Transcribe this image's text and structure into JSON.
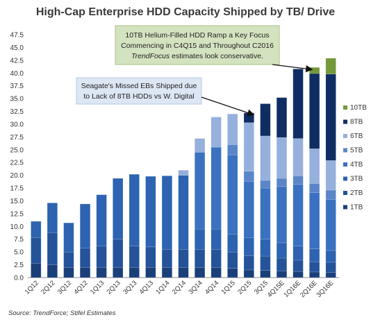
{
  "chart_data": {
    "type": "bar",
    "stacked": true,
    "title": "High-Cap Enterprise HDD Capacity Shipped by TB/ Drive",
    "xlabel": "",
    "ylabel": "",
    "ylim": [
      0,
      47.5
    ],
    "y_ticks": [
      "0.0",
      "2.5",
      "5.0",
      "7.5",
      "10.0",
      "12.5",
      "15.0",
      "17.5",
      "20.0",
      "22.5",
      "25.0",
      "27.5",
      "30.0",
      "32.5",
      "35.0",
      "37.5",
      "40.0",
      "42.5",
      "45.0",
      "47.5"
    ],
    "grid": false,
    "legend_position": "right",
    "categories": [
      "1Q12",
      "2Q12",
      "3Q12",
      "4Q12",
      "1Q13",
      "2Q13",
      "3Q13",
      "4Q13",
      "1Q14",
      "2Q14",
      "3Q14",
      "4Q14",
      "1Q15",
      "2Q15",
      "3Q15",
      "4Q15E",
      "1Q16E",
      "2Q16E",
      "3Q16E"
    ],
    "series": [
      {
        "name": "1TB",
        "color": "#1b3f7a",
        "values": [
          2.8,
          2.5,
          2.0,
          2.0,
          2.0,
          2.0,
          2.0,
          2.0,
          2.0,
          2.0,
          2.0,
          2.0,
          1.8,
          1.5,
          1.4,
          1.3,
          1.2,
          1.1,
          1.0
        ]
      },
      {
        "name": "2TB",
        "color": "#24539a",
        "values": [
          5.0,
          6.3,
          3.0,
          3.8,
          4.2,
          5.5,
          4.2,
          4.0,
          3.5,
          3.5,
          3.5,
          3.5,
          3.2,
          2.8,
          2.8,
          2.5,
          2.2,
          2.0,
          2.0
        ]
      },
      {
        "name": "3TB",
        "color": "#2d63b0",
        "values": [
          3.2,
          5.8,
          5.7,
          8.6,
          10.0,
          11.9,
          14.0,
          13.8,
          14.4,
          14.5,
          4.0,
          4.0,
          3.5,
          3.5,
          3.3,
          3.0,
          2.8,
          2.5,
          2.3
        ]
      },
      {
        "name": "4TB",
        "color": "#3a71c0",
        "values": [
          0,
          0,
          0,
          0,
          0,
          0,
          0,
          0,
          0,
          0,
          15.0,
          16.0,
          15.5,
          11.0,
          10.0,
          11.0,
          12.0,
          11.0,
          10.0
        ]
      },
      {
        "name": "5TB",
        "color": "#5a86c8",
        "values": [
          0,
          0,
          0,
          0,
          0,
          0,
          0,
          0,
          0,
          0,
          0,
          0,
          2.0,
          2.0,
          1.5,
          1.6,
          1.7,
          1.8,
          1.8
        ]
      },
      {
        "name": "6TB",
        "color": "#96b0dd",
        "values": [
          0,
          0,
          0,
          0,
          0,
          0,
          0,
          0,
          0,
          1.0,
          2.7,
          5.9,
          6.0,
          9.5,
          8.7,
          8.0,
          7.3,
          6.8,
          5.8
        ]
      },
      {
        "name": "8TB",
        "color": "#0f2d62",
        "values": [
          0,
          0,
          0,
          0,
          0,
          0,
          0,
          0,
          0,
          0,
          0,
          0,
          0,
          1.9,
          6.3,
          7.8,
          13.6,
          14.7,
          16.9
        ]
      },
      {
        "name": "10TB",
        "color": "#73993a",
        "values": [
          0,
          0,
          0,
          0,
          0,
          0,
          0,
          0,
          0,
          0,
          0,
          0,
          0,
          0,
          0,
          0,
          0,
          1.2,
          3.1
        ]
      }
    ],
    "annotations": [
      {
        "lines": [
          "10TB Helium-Filled HDD Ramp a Key Focus",
          "Commencing in C4Q15 and Throughout  C2016",
          "TrendFocus estimates look conservative."
        ],
        "italic_word": "TrendFocus"
      },
      {
        "lines": [
          "Seagate's Missed EBs Shipped due",
          "to Lack of 8TB HDDs vs W. Digital"
        ]
      }
    ],
    "source": "Source: TrendForce; Stifel Estimates"
  }
}
